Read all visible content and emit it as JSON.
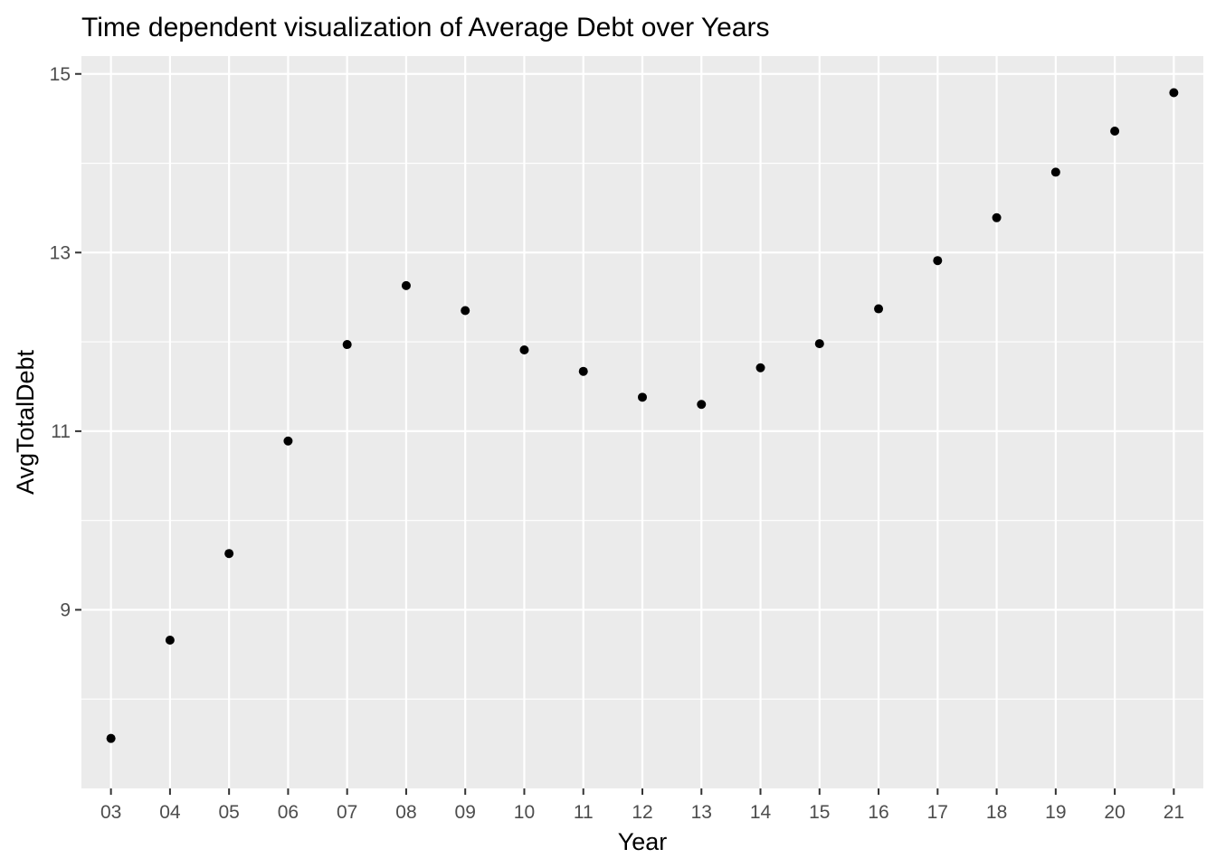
{
  "chart_data": {
    "type": "scatter",
    "title": "Time dependent visualization of Average Debt over Years",
    "xlabel": "Year",
    "ylabel": "AvgTotalDebt",
    "categories": [
      "03",
      "04",
      "05",
      "06",
      "07",
      "08",
      "09",
      "10",
      "11",
      "12",
      "13",
      "14",
      "15",
      "16",
      "17",
      "18",
      "19",
      "20",
      "21"
    ],
    "values": [
      7.56,
      8.66,
      9.63,
      10.89,
      11.97,
      12.63,
      12.35,
      11.91,
      11.67,
      11.38,
      11.3,
      11.71,
      11.98,
      12.37,
      12.91,
      13.39,
      13.9,
      14.36,
      14.79
    ],
    "yticks": [
      9,
      11,
      13,
      15
    ],
    "ylim": [
      7.0,
      15.2
    ],
    "grid": true,
    "legend": "none",
    "colors": {
      "panel_background": "#ebebeb",
      "gridline": "#ffffff",
      "point": "#000000",
      "tick_mark": "#333333",
      "tick_text": "#4d4d4d"
    }
  }
}
